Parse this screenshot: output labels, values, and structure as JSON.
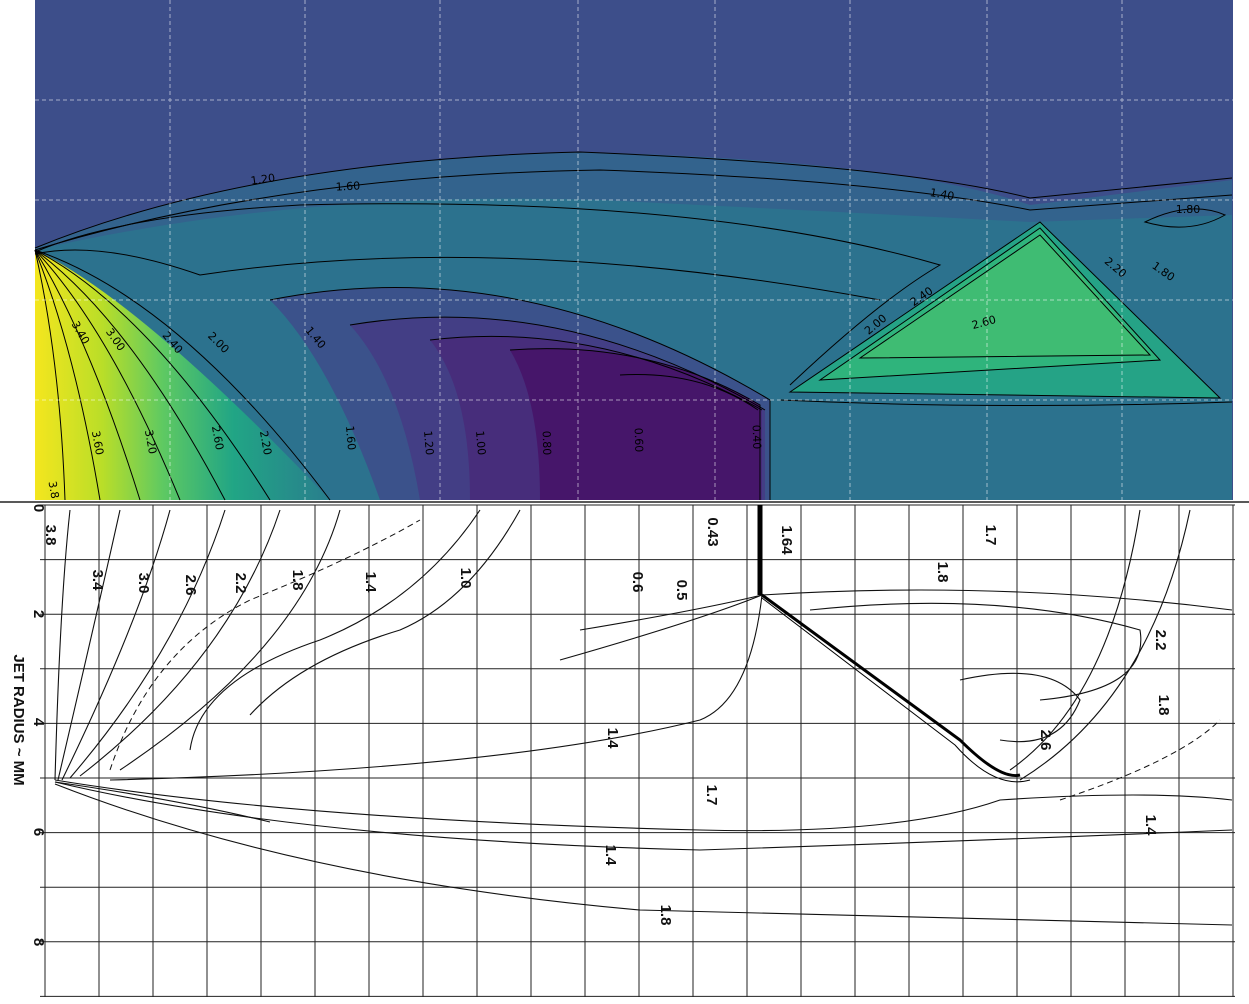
{
  "top_panel": {
    "contour_labels": [
      "1.20",
      "1.60",
      "1.40",
      "1.80",
      "2.20",
      "1.80",
      "2.60",
      "2.40",
      "2.00",
      "3.40",
      "3.00",
      "2.40",
      "2.00",
      "1.40",
      "3.60",
      "3.20",
      "2.60",
      "2.20",
      "1.60",
      "1.20",
      "1.00",
      "0.80",
      "0.60",
      "0.40",
      "3.8"
    ]
  },
  "bottom_panel": {
    "axis_label": "JET RADIUS ~ MM",
    "axis_ticks": [
      "0",
      "2",
      "4",
      "6",
      "8"
    ],
    "contour_labels": [
      "3.8",
      "3.4",
      "3.0",
      "2.6",
      "2.2",
      "1.8",
      "1.4",
      "1.0",
      "0.6",
      "0.5",
      "0.43",
      "1.64",
      "1.7",
      "1.8",
      "2.2",
      "1.8",
      "2.6",
      "1.4",
      "1.7",
      "1.4",
      "1.8",
      "1.4"
    ]
  }
}
